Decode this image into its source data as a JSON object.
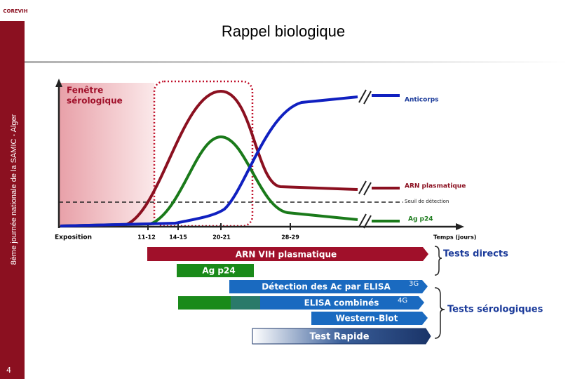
{
  "header": {
    "logo": "COREVIH",
    "title": "Rappel biologique",
    "sidebar": "8ème journée nationale de la SAMIC - Alger",
    "page_number": "4"
  },
  "diagram": {
    "window_label": [
      "Fenêtre",
      "sérologique"
    ],
    "curves": {
      "antibodies": "Anticorps",
      "rna": "ARN plasmatique",
      "threshold": "Seuil de détection",
      "p24": "Ag p24"
    },
    "x_axis": {
      "label": "Temps (jours)",
      "origin": "Exposition",
      "ticks": [
        "11-12",
        "14-15",
        "20-21",
        "28-29"
      ]
    }
  },
  "tests": [
    {
      "label": "ARN VIH plasmatique"
    },
    {
      "label": "Ag p24"
    },
    {
      "label": "Détection des Ac par ELISA",
      "tag": "3G"
    },
    {
      "label": "ELISA combinés",
      "tag": "4G"
    },
    {
      "label": "Western-Blot"
    },
    {
      "label": "Test Rapide"
    }
  ],
  "groups": [
    "Tests directs",
    "Tests sérologiques"
  ]
}
